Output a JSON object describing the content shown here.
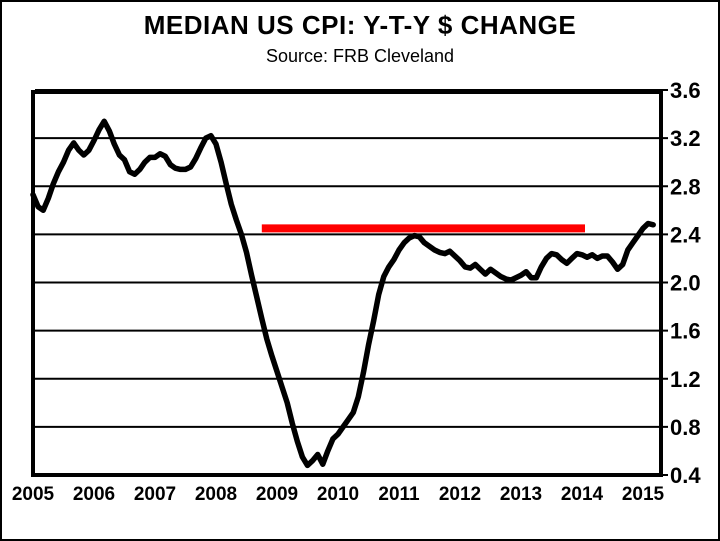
{
  "header": {
    "title": "MEDIAN US CPI: Y-T-Y $ CHANGE",
    "subtitle": "Source: FRB Cleveland"
  },
  "chart_data": {
    "type": "line",
    "title": "MEDIAN US CPI: Y-T-Y $ CHANGE",
    "subtitle": "Source: FRB Cleveland",
    "grid": "horizontal-only",
    "legend": "none",
    "xlim": [
      2004.95,
      2015.3
    ],
    "ylim": [
      0.4,
      3.6
    ],
    "yticks": [
      0.4,
      0.8,
      1.2,
      1.6,
      2.0,
      2.4,
      2.8,
      3.2,
      3.6
    ],
    "ytick_labels": [
      "0.4",
      "0.8",
      "1.2",
      "1.6",
      "2.0",
      "2.4",
      "2.8",
      "3.2",
      "3.6"
    ],
    "ytick_side": "right",
    "xticks": [
      2005,
      2006,
      2007,
      2008,
      2009,
      2010,
      2011,
      2012,
      2013,
      2014,
      2015
    ],
    "xtick_labels": [
      "2005",
      "2006",
      "2007",
      "2008",
      "2009",
      "2010",
      "2011",
      "2012",
      "2013",
      "2014",
      "2015"
    ],
    "line_color": "#000000",
    "series": [
      {
        "name": "Median US CPI year-to-year change",
        "color": "#000000",
        "start_year": 2005,
        "start_month": 1,
        "frequency": "monthly",
        "values": [
          2.73,
          2.63,
          2.6,
          2.7,
          2.82,
          2.92,
          3.0,
          3.1,
          3.16,
          3.1,
          3.06,
          3.1,
          3.18,
          3.27,
          3.34,
          3.26,
          3.15,
          3.06,
          3.02,
          2.92,
          2.9,
          2.94,
          3.0,
          3.04,
          3.04,
          3.07,
          3.05,
          2.98,
          2.95,
          2.94,
          2.94,
          2.96,
          3.03,
          3.12,
          3.2,
          3.22,
          3.15,
          3.0,
          2.82,
          2.65,
          2.52,
          2.4,
          2.25,
          2.06,
          1.88,
          1.7,
          1.53,
          1.39,
          1.26,
          1.13,
          1.0,
          0.83,
          0.68,
          0.55,
          0.48,
          0.52,
          0.57,
          0.49,
          0.6,
          0.7,
          0.74,
          0.8,
          0.86,
          0.92,
          1.05,
          1.25,
          1.48,
          1.68,
          1.9,
          2.05,
          2.13,
          2.19,
          2.27,
          2.33,
          2.37,
          2.39,
          2.38,
          2.33,
          2.3,
          2.27,
          2.25,
          2.24,
          2.26,
          2.22,
          2.18,
          2.13,
          2.12,
          2.15,
          2.11,
          2.07,
          2.11,
          2.08,
          2.05,
          2.03,
          2.02,
          2.04,
          2.06,
          2.09,
          2.04,
          2.04,
          2.13,
          2.2,
          2.24,
          2.23,
          2.19,
          2.16,
          2.2,
          2.24,
          2.23,
          2.21,
          2.23,
          2.2,
          2.22,
          2.22,
          2.17,
          2.11,
          2.15,
          2.27,
          2.33,
          2.39,
          2.45,
          2.49,
          2.48
        ]
      }
    ],
    "reference_line": {
      "value": 2.45,
      "x_start": 2008.75,
      "x_end": 2014.05,
      "color": "#ff0000"
    }
  }
}
